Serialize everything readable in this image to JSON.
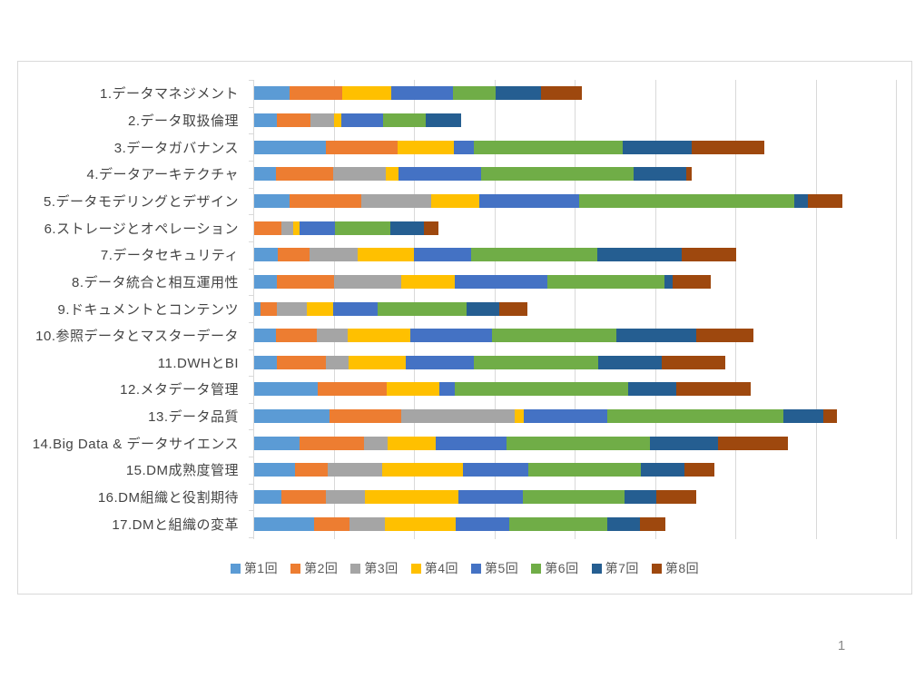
{
  "page": {
    "page_number": "1"
  },
  "chart_style": {
    "frame_border_color": "#d9d9d9",
    "gridline_color": "#d9d9d9",
    "category_label_color": "#444444",
    "legend_text_color": "#595959",
    "background": "#ffffff"
  },
  "chart_data": {
    "type": "bar",
    "subtype": "horizontal-stacked",
    "title": "",
    "xlabel": "",
    "ylabel": "",
    "axis": {
      "x_min": 0,
      "x_max": 80,
      "x_gridline_step": 10,
      "x_tick_labels_visible": false,
      "gridlines": "vertical",
      "note": "no numeric axis labels are shown in the chart; values estimated with one gridline interval = 10 units"
    },
    "legend_position": "bottom",
    "categories": [
      "1.データマネジメント",
      "2.データ取扱倫理",
      "3.データガバナンス",
      "4.データアーキテクチャ",
      "5.データモデリングとデザイン",
      "6.ストレージとオペレーション",
      "7.データセキュリティ",
      "8.データ統合と相互運用性",
      "9.ドキュメントとコンテンツ",
      "10.参照データとマスターデータ",
      "11.DWHとBI",
      "12.メタデータ管理",
      "13.データ品質",
      "14.Big Data & データサイエンス",
      "15.DM成熟度管理",
      "16.DM組織と役割期待",
      "17.DMと組織の変革"
    ],
    "series": [
      {
        "name": "第1回",
        "color": "#5b9bd5",
        "values": [
          4.4,
          2.8,
          8.9,
          2.7,
          4.4,
          0,
          2.9,
          2.8,
          0.8,
          2.7,
          2.8,
          7.9,
          9.4,
          5.6,
          5.1,
          3.4,
          7.5
        ]
      },
      {
        "name": "第2回",
        "color": "#ed7d31",
        "values": [
          6.6,
          4.2,
          9.0,
          7.1,
          8.9,
          3.4,
          4.0,
          7.1,
          2.0,
          5.1,
          6.1,
          8.6,
          8.9,
          8.1,
          4.1,
          5.5,
          4.4
        ]
      },
      {
        "name": "第3回",
        "color": "#a5a5a5",
        "values": [
          0,
          2.9,
          0,
          6.6,
          8.7,
          1.5,
          6.0,
          8.4,
          3.7,
          3.8,
          2.8,
          0,
          14.1,
          2.9,
          6.7,
          4.9,
          4.4
        ]
      },
      {
        "name": "第4回",
        "color": "#ffc000",
        "values": [
          6.1,
          0.9,
          7.0,
          1.6,
          6.0,
          0.8,
          7.0,
          6.7,
          3.3,
          7.8,
          7.2,
          6.6,
          1.2,
          6.0,
          10.1,
          11.6,
          8.8
        ]
      },
      {
        "name": "第5回",
        "color": "#4472c4",
        "values": [
          7.6,
          5.2,
          2.4,
          10.2,
          12.4,
          4.4,
          7.1,
          11.5,
          5.6,
          10.2,
          8.5,
          1.9,
          10.4,
          8.8,
          8.1,
          8.0,
          6.6
        ]
      },
      {
        "name": "第6回",
        "color": "#70ad47",
        "values": [
          5.4,
          5.4,
          18.6,
          19.0,
          26.8,
          6.9,
          15.7,
          14.6,
          11.0,
          15.5,
          15.4,
          21.6,
          21.9,
          17.9,
          14.0,
          12.7,
          12.3
        ]
      },
      {
        "name": "第7回",
        "color": "#255e91",
        "values": [
          5.6,
          4.4,
          8.6,
          6.6,
          1.7,
          4.1,
          10.5,
          1.0,
          4.1,
          9.9,
          7.9,
          5.9,
          5.0,
          8.4,
          5.5,
          4.0,
          4.0
        ]
      },
      {
        "name": "第8回",
        "color": "#9e480e",
        "values": [
          5.1,
          0,
          9.0,
          0.7,
          4.3,
          1.8,
          6.8,
          4.7,
          3.5,
          7.1,
          7.9,
          9.3,
          1.6,
          8.8,
          3.7,
          4.9,
          3.2
        ]
      }
    ]
  }
}
